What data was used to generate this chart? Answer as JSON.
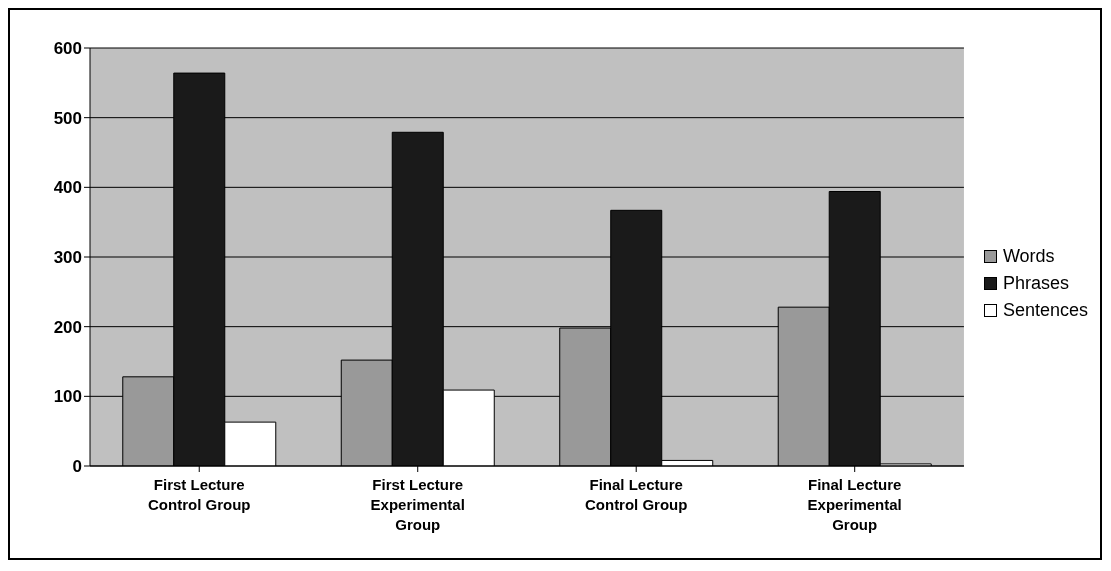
{
  "chart_data": {
    "type": "bar",
    "categories": [
      "First Lecture Control Group",
      "First Lecture Experimental Group",
      "Final Lecture Control Group",
      "Final Lecture Experimental Group"
    ],
    "series": [
      {
        "name": "Words",
        "color": "#999999",
        "values": [
          128,
          152,
          198,
          228
        ]
      },
      {
        "name": "Phrases",
        "color": "#1a1a1a",
        "values": [
          564,
          479,
          367,
          394
        ]
      },
      {
        "name": "Sentences",
        "color": "#ffffff",
        "values": [
          63,
          109,
          8,
          3
        ]
      }
    ],
    "ylim": [
      0,
      600
    ],
    "yticks": [
      0,
      100,
      200,
      300,
      400,
      500,
      600
    ],
    "grid": "y",
    "legend": "right"
  }
}
